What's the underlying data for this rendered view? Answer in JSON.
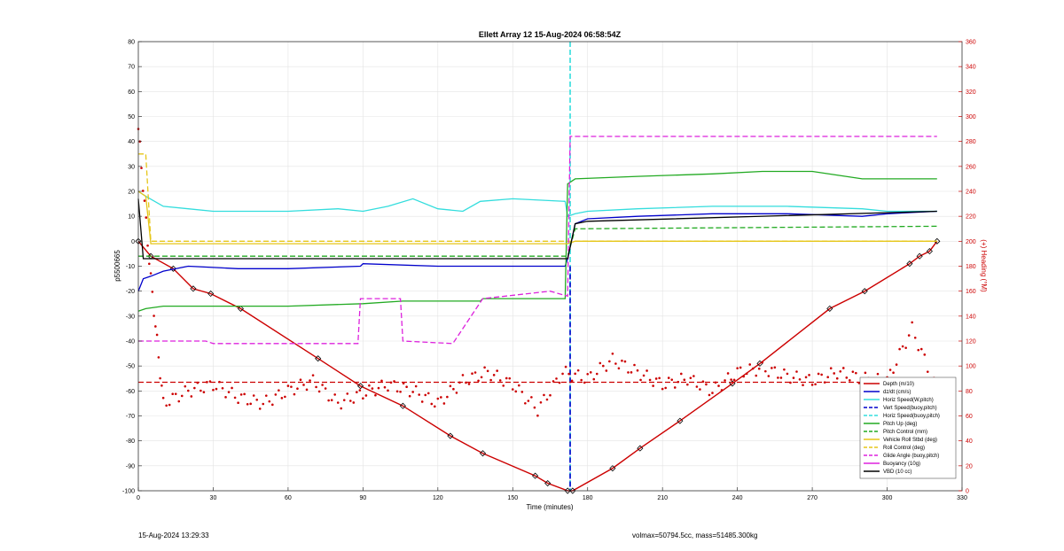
{
  "chart_data": {
    "type": "line",
    "title": "Ellett Array 12 15-Aug-2024 06:58:54Z",
    "xlabel": "Time (minutes)",
    "ylabel_left": "p5500665",
    "ylabel_right": "(+) Heading (°M)",
    "xlim": [
      0,
      330
    ],
    "ylim_left": [
      -100,
      80
    ],
    "ylim_right": [
      0,
      360
    ],
    "x_ticks": [
      0,
      30,
      60,
      90,
      120,
      150,
      180,
      210,
      240,
      270,
      300,
      330
    ],
    "y_ticks_left": [
      -100,
      -90,
      -80,
      -70,
      -60,
      -50,
      -40,
      -30,
      -20,
      -10,
      0,
      10,
      20,
      30,
      40,
      50,
      60,
      70,
      80
    ],
    "y_ticks_right": [
      0,
      20,
      40,
      60,
      80,
      100,
      120,
      140,
      160,
      180,
      200,
      220,
      240,
      260,
      280,
      300,
      320,
      340,
      360
    ],
    "grid": true,
    "legend_position": "bottom-right",
    "apogee_marker_x": 173,
    "series": [
      {
        "name": "Depth (m/10)",
        "color": "#cc0000",
        "style": "solid",
        "x": [
          0,
          5,
          14,
          22,
          29,
          41,
          72,
          89,
          106,
          125,
          138,
          159,
          164,
          172,
          174,
          190,
          201,
          217,
          238,
          249,
          277,
          291,
          309,
          313,
          317,
          320
        ],
        "y": [
          0,
          -6,
          -11,
          -19,
          -21,
          -27,
          -47,
          -58,
          -66,
          -78,
          -85,
          -94,
          -97,
          -100,
          -100,
          -91,
          -83,
          -72,
          -57,
          -49,
          -27,
          -20,
          -9,
          -6,
          -4,
          0
        ]
      },
      {
        "name": "dz/dt (cm/s)",
        "color": "#0000cc",
        "style": "solid",
        "x": [
          0,
          2,
          5,
          10,
          20,
          40,
          60,
          89,
          90,
          120,
          137,
          150,
          171,
          172,
          175,
          180,
          200,
          230,
          260,
          290,
          300,
          320
        ],
        "y": [
          -20,
          -15,
          -14,
          -12,
          -10,
          -11,
          -11,
          -10,
          -9,
          -10,
          -10,
          -10,
          -10,
          -7,
          7,
          9,
          10,
          11,
          11,
          10,
          11,
          12
        ]
      },
      {
        "name": "Horiz Speed(W,pitch)",
        "color": "#33dddd",
        "style": "solid",
        "x": [
          0,
          3,
          10,
          20,
          30,
          40,
          60,
          80,
          90,
          100,
          110,
          120,
          130,
          137,
          150,
          171,
          172,
          175,
          180,
          200,
          230,
          260,
          290,
          300,
          320
        ],
        "y": [
          20,
          18,
          14,
          13,
          12,
          12,
          12,
          13,
          12,
          14,
          17,
          13,
          12,
          16,
          17,
          16,
          10,
          11,
          12,
          13,
          14,
          14,
          13,
          12,
          12
        ]
      },
      {
        "name": "Vert Speed(buoy,pitch)",
        "color": "#0000cc",
        "style": "dashed",
        "x": [],
        "y": []
      },
      {
        "name": "Horiz Speed(buoy,pitch)",
        "color": "#33dddd",
        "style": "dashed",
        "x": [],
        "y": []
      },
      {
        "name": "Pitch Up (deg)",
        "color": "#22aa22",
        "style": "solid",
        "x": [
          0,
          3,
          10,
          40,
          60,
          90,
          106,
          137,
          138,
          171,
          172,
          175,
          200,
          230,
          250,
          270,
          290,
          320
        ],
        "y": [
          -28,
          -27,
          -26,
          -26,
          -26,
          -25,
          -24,
          -24,
          -23,
          -23,
          23,
          25,
          26,
          27,
          28,
          28,
          25,
          25
        ]
      },
      {
        "name": "Pitch Control (mm)",
        "color": "#22aa22",
        "style": "dashed",
        "x": [
          0,
          2,
          172,
          175,
          320
        ],
        "y": [
          -6,
          -6,
          -6,
          5,
          6
        ]
      },
      {
        "name": "Vehicle Roll Stbd (deg)",
        "color": "#e6c619",
        "style": "solid",
        "x": [
          0,
          3,
          5,
          172,
          175,
          320
        ],
        "y": [
          20,
          18,
          -1,
          -1,
          0,
          0
        ]
      },
      {
        "name": "Roll Control (deg)",
        "color": "#e6c619",
        "style": "dashed",
        "x": [
          0,
          3,
          5,
          172,
          175,
          320
        ],
        "y": [
          35,
          35,
          0,
          0,
          0,
          0
        ]
      },
      {
        "name": "Glide Angle (buoy,pitch)",
        "color": "#dd22dd",
        "style": "dashed",
        "x": [
          0,
          27,
          30,
          88,
          89,
          105,
          106,
          126,
          138,
          165,
          172,
          173,
          320
        ],
        "y": [
          -40,
          -40,
          -41,
          -41,
          -23,
          -23,
          -40,
          -41,
          -23,
          -20,
          -22,
          42,
          42
        ]
      },
      {
        "name": "Buoyancy (10g)",
        "color": "#dd22dd",
        "style": "solid",
        "x": [],
        "y": []
      },
      {
        "name": "VBD (10 cc)",
        "color": "#000000",
        "style": "solid",
        "x": [
          0,
          2,
          172,
          175,
          180,
          320
        ],
        "y": [
          17,
          -7,
          -7,
          7,
          8,
          12
        ]
      },
      {
        "name": "Heading",
        "color": "#cc0000",
        "style": "dotted",
        "axis": "right",
        "x": [
          0,
          5,
          10,
          20,
          30,
          40,
          50,
          60,
          70,
          80,
          90,
          100,
          110,
          120,
          130,
          140,
          150,
          160,
          170,
          180,
          190,
          200,
          210,
          220,
          230,
          240,
          250,
          260,
          270,
          280,
          290,
          300,
          310,
          320
        ],
        "y": [
          290,
          170,
          70,
          80,
          85,
          75,
          70,
          80,
          88,
          70,
          78,
          85,
          80,
          70,
          88,
          95,
          85,
          65,
          95,
          90,
          105,
          95,
          85,
          90,
          80,
          95,
          98,
          92,
          88,
          95,
          90,
          88,
          130,
          80
        ]
      },
      {
        "name": "Mean Heading",
        "color": "#cc0000",
        "style": "dashed",
        "axis": "right",
        "x": [
          0,
          320
        ],
        "y": [
          87,
          87
        ]
      }
    ]
  },
  "legend": [
    {
      "label": "Depth (m/10)",
      "color": "#cc0000",
      "style": "solid"
    },
    {
      "label": "dz/dt (cm/s)",
      "color": "#0000cc",
      "style": "solid"
    },
    {
      "label": "Horiz Speed(W,pitch)",
      "color": "#33dddd",
      "style": "solid"
    },
    {
      "label": "Vert Speed(buoy,pitch)",
      "color": "#0000cc",
      "style": "dashed"
    },
    {
      "label": "Horiz Speed(buoy,pitch)",
      "color": "#33dddd",
      "style": "dashed"
    },
    {
      "label": "Pitch Up (deg)",
      "color": "#22aa22",
      "style": "solid"
    },
    {
      "label": "Pitch Control (mm)",
      "color": "#22aa22",
      "style": "dashed"
    },
    {
      "label": "Vehicle Roll Stbd (deg)",
      "color": "#e6c619",
      "style": "solid"
    },
    {
      "label": "Roll Control (deg)",
      "color": "#e6c619",
      "style": "dashed"
    },
    {
      "label": "Glide Angle (buoy,pitch)",
      "color": "#dd22dd",
      "style": "dashed"
    },
    {
      "label": "Buoyancy (10g)",
      "color": "#dd22dd",
      "style": "solid"
    },
    {
      "label": "VBD (10 cc)",
      "color": "#000000",
      "style": "solid"
    }
  ],
  "footer": {
    "timestamp": "15-Aug-2024 13:29:33",
    "mass_info": "volmax=50794.5cc, mass=51485.300kg"
  }
}
